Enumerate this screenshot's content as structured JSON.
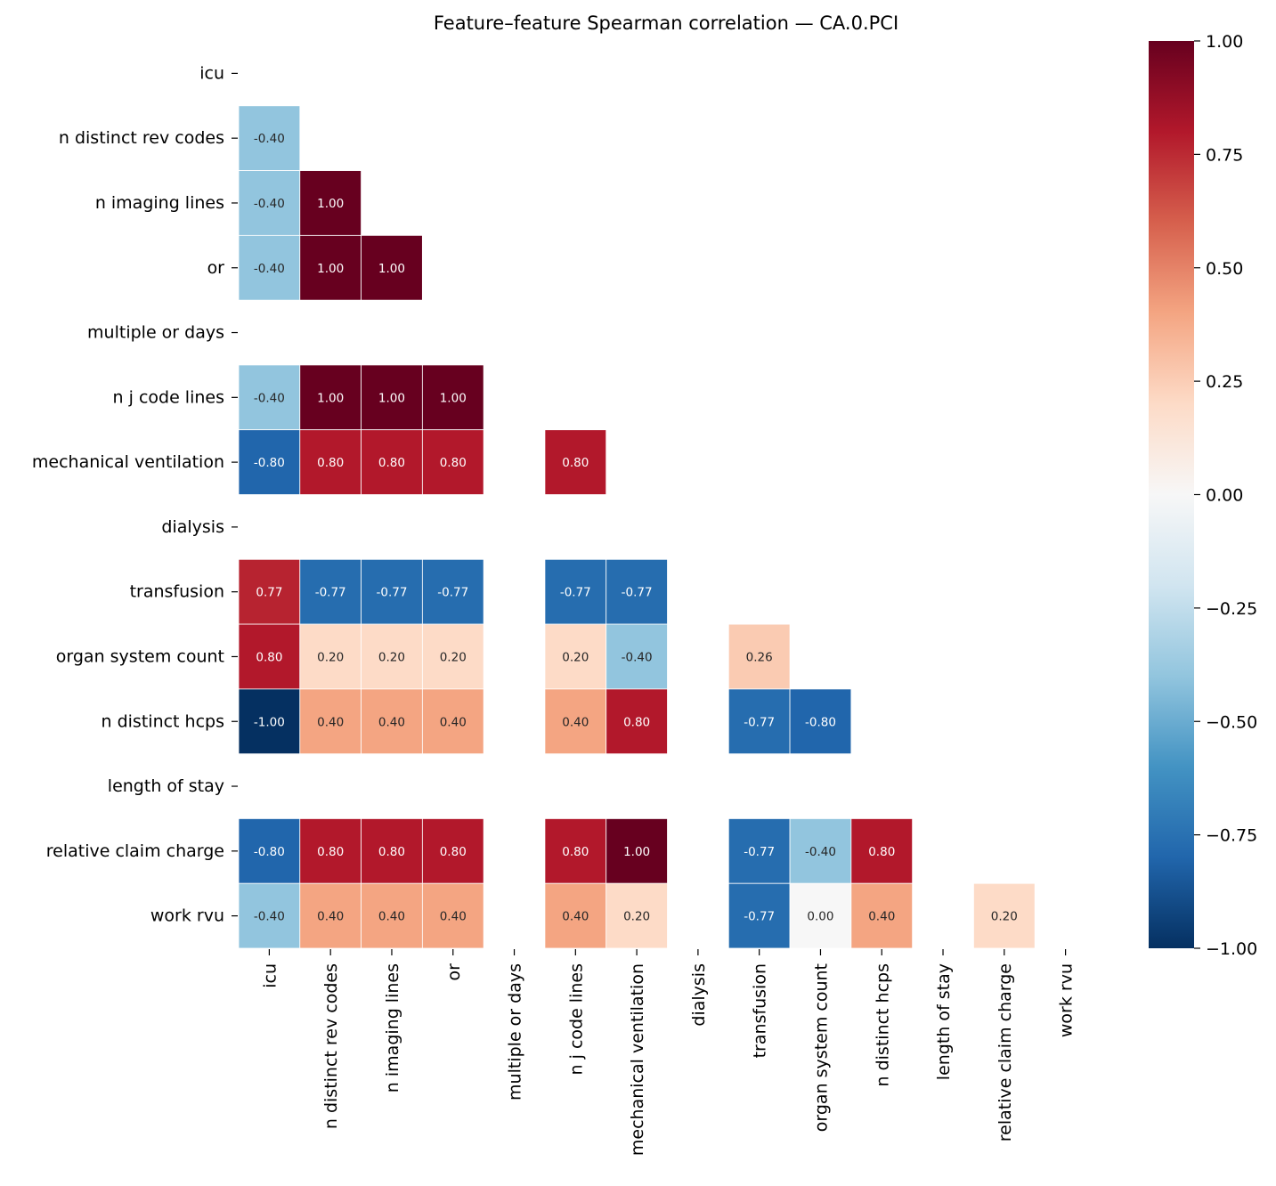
{
  "chart_data": {
    "type": "heatmap",
    "title": "Feature–feature Spearman correlation — CA.0.PCI",
    "labels": [
      "icu",
      "n distinct rev codes",
      "n imaging lines",
      "or",
      "multiple or days",
      "n j code lines",
      "mechanical ventilation",
      "dialysis",
      "transfusion",
      "organ system count",
      "n distinct hcps",
      "length of stay",
      "relative claim charge",
      "work rvu"
    ],
    "mask": "upper triangle including diagonal; constant features blank",
    "values": [
      [],
      [
        -0.4
      ],
      [
        -0.4,
        1.0
      ],
      [
        -0.4,
        1.0,
        1.0
      ],
      [
        null,
        null,
        null,
        null
      ],
      [
        -0.4,
        1.0,
        1.0,
        1.0,
        null
      ],
      [
        -0.8,
        0.8,
        0.8,
        0.8,
        null,
        0.8
      ],
      [
        null,
        null,
        null,
        null,
        null,
        null,
        null
      ],
      [
        0.77,
        -0.77,
        -0.77,
        -0.77,
        null,
        -0.77,
        -0.77,
        null
      ],
      [
        0.8,
        0.2,
        0.2,
        0.2,
        null,
        0.2,
        -0.4,
        null,
        0.26
      ],
      [
        -1.0,
        0.4,
        0.4,
        0.4,
        null,
        0.4,
        0.8,
        null,
        -0.77,
        -0.8
      ],
      [
        null,
        null,
        null,
        null,
        null,
        null,
        null,
        null,
        null,
        null,
        null
      ],
      [
        -0.8,
        0.8,
        0.8,
        0.8,
        null,
        0.8,
        1.0,
        null,
        -0.77,
        -0.4,
        0.8,
        null
      ],
      [
        -0.4,
        0.4,
        0.4,
        0.4,
        null,
        0.4,
        0.2,
        null,
        -0.77,
        0.0,
        0.4,
        null,
        0.2
      ]
    ],
    "value_format": "0.00",
    "colormap": "RdBu_r",
    "colormap_stops": [
      "#053061",
      "#2166ac",
      "#4393c3",
      "#92c5de",
      "#d1e5f0",
      "#f7f7f7",
      "#fddbc7",
      "#f4a582",
      "#d6604d",
      "#b2182b",
      "#67001f"
    ],
    "vmin": -1.0,
    "vmax": 1.0,
    "colorbar_ticks": [
      -1.0,
      -0.75,
      -0.5,
      -0.25,
      0.0,
      0.25,
      0.5,
      0.75,
      1.0
    ],
    "colorbar_tick_labels": [
      "−1.00",
      "−0.75",
      "−0.50",
      "−0.25",
      "0.00",
      "0.25",
      "0.50",
      "0.75",
      "1.00"
    ]
  }
}
